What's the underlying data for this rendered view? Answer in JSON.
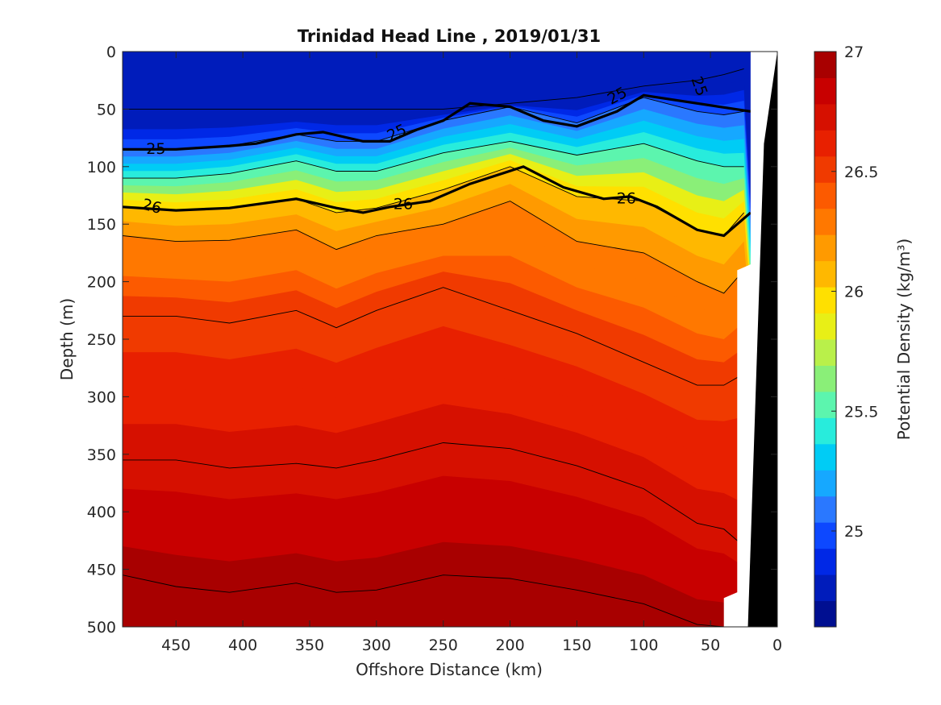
{
  "chart_data": {
    "type": "contour",
    "title": "Trinidad Head Line , 2019/01/31",
    "xlabel": "Offshore Distance (km)",
    "ylabel": "Depth (m)",
    "colorbar_label": "Potential Density (kg/m³)",
    "xlim": [
      490,
      0
    ],
    "ylim": [
      0,
      500
    ],
    "x_ticks": [
      450,
      400,
      350,
      300,
      250,
      200,
      150,
      100,
      50,
      0
    ],
    "y_ticks": [
      0,
      50,
      100,
      150,
      200,
      250,
      300,
      350,
      400,
      450,
      500
    ],
    "colorbar_range": [
      24.6,
      27.0
    ],
    "colorbar_ticks": [
      25,
      25.5,
      26,
      26.5,
      27
    ],
    "colorbar_ticks_text": [
      "25",
      "25.5",
      "26",
      "26.5",
      "27"
    ],
    "grid": false,
    "colormap": [
      "#000f91",
      "#001cbb",
      "#0028e6",
      "#0d48ff",
      "#2a78ff",
      "#16a8ff",
      "#00ccf5",
      "#28ecdc",
      "#5cf5ae",
      "#8aef78",
      "#b9f04a",
      "#e8ef16",
      "#ffe000",
      "#ffb800",
      "#ff9a00",
      "#ff7800",
      "#fc5a00",
      "#f03a00",
      "#e82000",
      "#d61000",
      "#c80000",
      "#a80000"
    ],
    "highlight_isopycnals": [
      {
        "value": 25,
        "label": "25",
        "depth_m": [
          85,
          85,
          82,
          80,
          72,
          70,
          78,
          78,
          68,
          60,
          45,
          48,
          60,
          65,
          52,
          38,
          45,
          52
        ],
        "x_km": [
          490,
          450,
          410,
          390,
          360,
          340,
          310,
          290,
          270,
          250,
          230,
          200,
          175,
          150,
          120,
          100,
          60,
          20
        ]
      },
      {
        "value": 26,
        "label": "26",
        "depth_m": [
          135,
          138,
          136,
          128,
          136,
          140,
          135,
          130,
          115,
          100,
          118,
          128,
          126,
          135,
          155,
          160,
          150,
          140
        ],
        "x_km": [
          490,
          450,
          410,
          360,
          330,
          310,
          290,
          260,
          230,
          190,
          160,
          130,
          110,
          90,
          60,
          40,
          30,
          20
        ]
      }
    ],
    "isopycnal_depth_profiles": {
      "x_km": [
        490,
        450,
        410,
        360,
        330,
        300,
        250,
        200,
        150,
        100,
        60,
        40,
        25
      ],
      "values": [
        {
          "sigma": 24.7,
          "depth_m": [
            50,
            50,
            50,
            50,
            50,
            50,
            50,
            45,
            40,
            30,
            25,
            20,
            15
          ]
        },
        {
          "sigma": 25.0,
          "depth_m": [
            85,
            85,
            82,
            72,
            78,
            78,
            60,
            48,
            62,
            40,
            52,
            55,
            52
          ]
        },
        {
          "sigma": 25.5,
          "depth_m": [
            110,
            110,
            106,
            95,
            104,
            104,
            88,
            78,
            90,
            80,
            95,
            100,
            100
          ]
        },
        {
          "sigma": 26.0,
          "depth_m": [
            135,
            138,
            136,
            128,
            140,
            136,
            120,
            100,
            126,
            130,
            155,
            160,
            140
          ]
        },
        {
          "sigma": 26.25,
          "depth_m": [
            160,
            165,
            164,
            155,
            172,
            160,
            150,
            130,
            165,
            175,
            200,
            210,
            190
          ]
        },
        {
          "sigma": 26.5,
          "depth_m": [
            230,
            230,
            236,
            225,
            240,
            225,
            205,
            225,
            245,
            270,
            290,
            290,
            280
          ]
        },
        {
          "sigma": 26.75,
          "depth_m": [
            355,
            355,
            362,
            358,
            362,
            355,
            340,
            345,
            360,
            380,
            410,
            415,
            430
          ]
        },
        {
          "sigma": 26.95,
          "depth_m": [
            455,
            465,
            470,
            462,
            470,
            468,
            455,
            458,
            468,
            480,
            498,
            500,
            500
          ]
        }
      ]
    },
    "contour_labels": [
      {
        "text": "25",
        "x_km": 465,
        "depth_m": 84,
        "angle": 0
      },
      {
        "text": "25",
        "x_km": 285,
        "depth_m": 70,
        "angle": -25
      },
      {
        "text": "25",
        "x_km": 120,
        "depth_m": 38,
        "angle": -28
      },
      {
        "text": "25",
        "x_km": 58,
        "depth_m": 30,
        "angle": 70
      },
      {
        "text": "26",
        "x_km": 468,
        "depth_m": 134,
        "angle": 15
      },
      {
        "text": "26",
        "x_km": 280,
        "depth_m": 132,
        "angle": 0
      },
      {
        "text": "26",
        "x_km": 113,
        "depth_m": 127,
        "angle": 0
      }
    ],
    "shelf_mask": {
      "color": "#000000"
    },
    "missing_data_fill": "#ffffff"
  }
}
